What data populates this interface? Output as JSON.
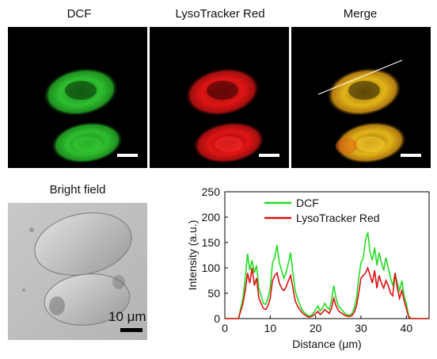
{
  "panels": {
    "dcf": "DCF",
    "lyso": "LysoTracker Red",
    "merge": "Merge",
    "bright_field": "Bright field",
    "scale_label": "10 μm"
  },
  "colors": {
    "dcf": "#22cc22",
    "lyso": "#e01010",
    "merge": "#d8b018",
    "background": "#000000"
  },
  "chart_data": {
    "type": "line",
    "xlabel": "Distance (μm)",
    "ylabel": "Intensity (a.u.)",
    "xlim": [
      0,
      45
    ],
    "ylim": [
      0,
      250
    ],
    "xticks": [
      0,
      10,
      20,
      30,
      40
    ],
    "yticks": [
      0,
      50,
      100,
      150,
      200,
      250
    ],
    "legend_position": "top-center",
    "series": [
      {
        "name": "DCF",
        "color": "#22dd22",
        "x": [
          0,
          3,
          4,
          4.5,
          5,
          5.5,
          6,
          6.5,
          7,
          7.5,
          8,
          8.5,
          9,
          9.5,
          10,
          10.5,
          11,
          11.5,
          12,
          12.5,
          13,
          13.5,
          14,
          14.5,
          15,
          15.5,
          16,
          16.5,
          17,
          17.5,
          18,
          18.5,
          19,
          19.5,
          20,
          20.5,
          21,
          21.5,
          22,
          22.5,
          23,
          23.5,
          24,
          24.5,
          25,
          25.5,
          26,
          26.5,
          27,
          27.5,
          28,
          28.5,
          29,
          29.5,
          30,
          30.5,
          31,
          31.5,
          32,
          32.5,
          33,
          33.5,
          34,
          34.5,
          35,
          35.5,
          36,
          36.5,
          37,
          37.5,
          38,
          38.5,
          39,
          39.5,
          40,
          40.5,
          41,
          45
        ],
        "y": [
          0,
          0,
          40,
          80,
          128,
          95,
          115,
          90,
          105,
          60,
          45,
          30,
          28,
          40,
          60,
          110,
          120,
          145,
          110,
          95,
          80,
          90,
          110,
          130,
          90,
          55,
          40,
          28,
          18,
          12,
          8,
          5,
          6,
          10,
          18,
          25,
          15,
          20,
          30,
          22,
          18,
          35,
          65,
          40,
          25,
          20,
          15,
          10,
          8,
          6,
          10,
          20,
          40,
          80,
          110,
          120,
          155,
          170,
          130,
          115,
          140,
          105,
          130,
          110,
          95,
          120,
          100,
          80,
          65,
          90,
          70,
          55,
          75,
          45,
          30,
          5,
          0,
          0
        ]
      },
      {
        "name": "LysoTracker Red",
        "color": "#e01010",
        "x": [
          0,
          3,
          4,
          4.5,
          5,
          5.5,
          6,
          6.5,
          7,
          7.5,
          8,
          8.5,
          9,
          9.5,
          10,
          10.5,
          11,
          11.5,
          12,
          12.5,
          13,
          13.5,
          14,
          14.5,
          15,
          15.5,
          16,
          16.5,
          17,
          17.5,
          18,
          18.5,
          19,
          19.5,
          20,
          20.5,
          21,
          21.5,
          22,
          22.5,
          23,
          23.5,
          24,
          24.5,
          25,
          25.5,
          26,
          26.5,
          27,
          27.5,
          28,
          28.5,
          29,
          29.5,
          30,
          30.5,
          31,
          31.5,
          32,
          32.5,
          33,
          33.5,
          34,
          34.5,
          35,
          35.5,
          36,
          36.5,
          37,
          37.5,
          38,
          38.5,
          39,
          39.5,
          40,
          40.5,
          41,
          45
        ],
        "y": [
          0,
          0,
          30,
          55,
          90,
          70,
          100,
          65,
          80,
          40,
          30,
          20,
          18,
          25,
          40,
          75,
          85,
          90,
          70,
          60,
          55,
          62,
          75,
          85,
          60,
          35,
          25,
          18,
          12,
          8,
          5,
          3,
          4,
          6,
          10,
          14,
          8,
          12,
          18,
          14,
          10,
          20,
          40,
          25,
          16,
          12,
          9,
          6,
          5,
          4,
          6,
          12,
          25,
          50,
          80,
          85,
          90,
          100,
          85,
          70,
          95,
          60,
          85,
          70,
          60,
          75,
          65,
          50,
          45,
          90,
          60,
          40,
          55,
          35,
          20,
          3,
          0,
          0
        ]
      }
    ]
  }
}
